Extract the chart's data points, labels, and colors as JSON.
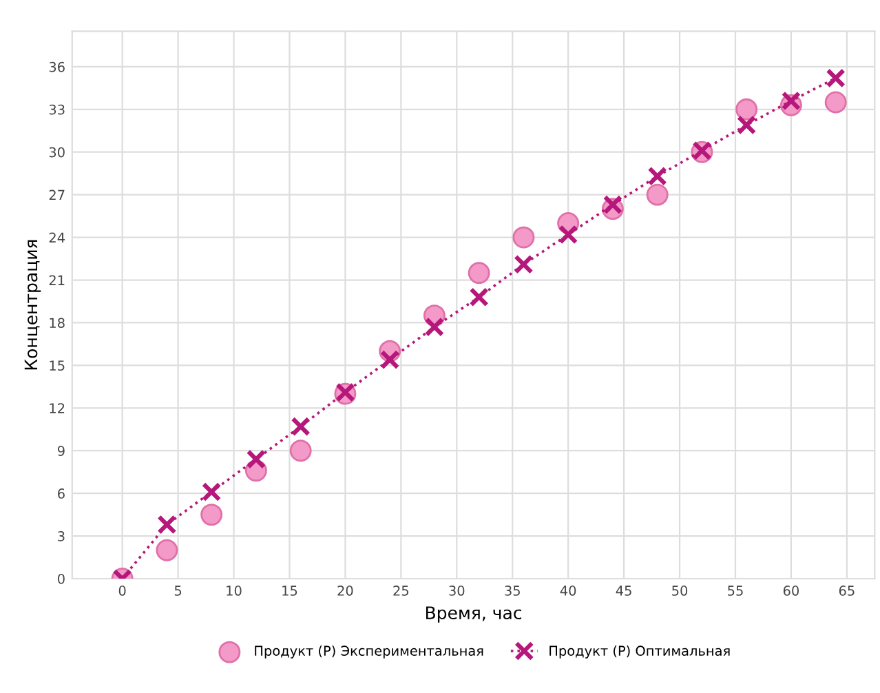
{
  "chart_data": {
    "type": "scatter",
    "xlabel": "Время, час",
    "ylabel": "Концентрация",
    "x": [
      0,
      4,
      8,
      12,
      16,
      20,
      24,
      28,
      32,
      36,
      40,
      44,
      48,
      52,
      56,
      60,
      64
    ],
    "series": [
      {
        "name": "Продукт (P) Экспериментальная",
        "color": "#f49ac8",
        "marker": "circle",
        "values": [
          0,
          2,
          4.5,
          7.6,
          9,
          13,
          16,
          18.5,
          21.5,
          24,
          25,
          26,
          27,
          30,
          33,
          33.3,
          33.5
        ]
      },
      {
        "name": "Продукт (P) Оптимальная",
        "type": "line",
        "color": "#b5177a",
        "marker": "cross",
        "line_style": "dotted",
        "values": [
          0,
          3.8,
          6.1,
          8.4,
          10.7,
          13.1,
          15.4,
          17.7,
          19.8,
          22.1,
          24.2,
          26.3,
          28.3,
          30.1,
          31.9,
          33.6,
          35.2
        ]
      }
    ],
    "xlim": [
      -4.5,
      67.5
    ],
    "xticks": [
      0,
      5,
      10,
      15,
      20,
      25,
      30,
      35,
      40,
      45,
      50,
      55,
      60,
      65
    ],
    "ylim": [
      0,
      38.5
    ],
    "yticks": [
      0,
      3,
      6,
      9,
      12,
      15,
      18,
      21,
      24,
      27,
      30,
      33,
      36
    ],
    "grid": true,
    "legend": "bottom"
  }
}
